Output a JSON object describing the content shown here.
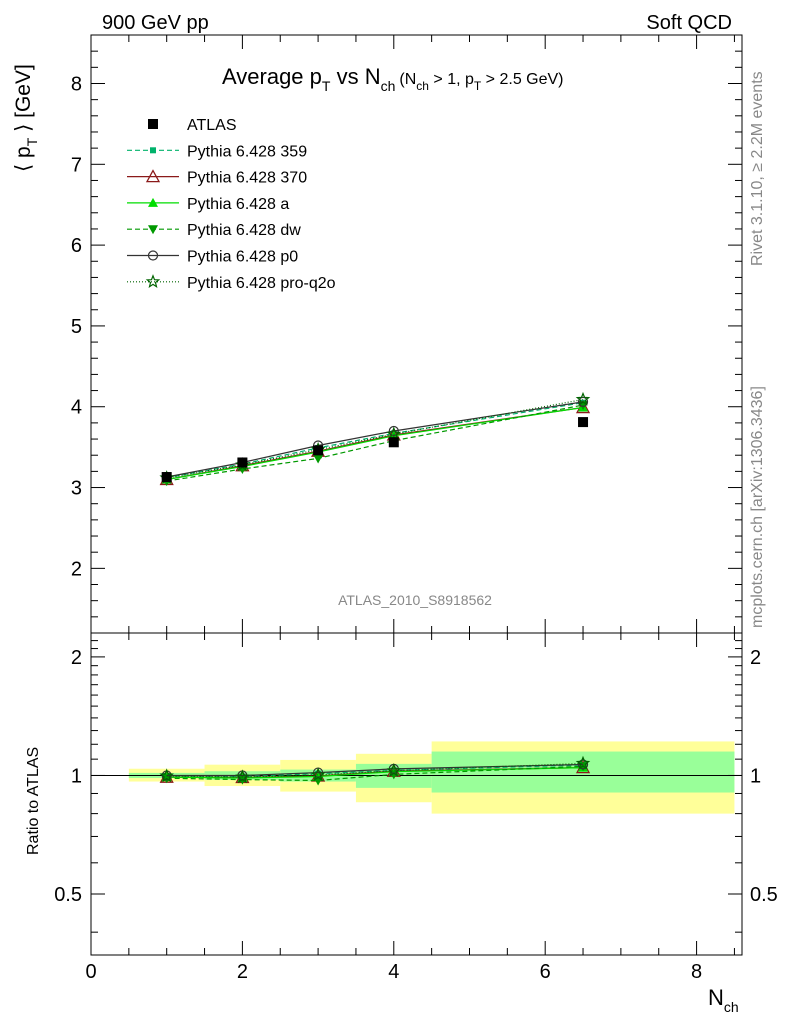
{
  "header": {
    "left": "900 GeV pp",
    "right": "Soft QCD"
  },
  "side": {
    "rivet": "Rivet 3.1.10, ≥ 2.2M events",
    "mcplots": "mcplots.cern.ch [arXiv:1306.3436]"
  },
  "chart_data": {
    "type": "line",
    "title": {
      "main": "Average p",
      "sub1": "T",
      "mid": " vs N",
      "sub2": "ch",
      "cuts": "(N",
      "cuts_sub1": "ch",
      "cuts_mid": " > 1, p",
      "cuts_sub2": "T",
      "cuts_end": " > 2.5 GeV)"
    },
    "ylabel": {
      "main": "⟨ p",
      "sub": "T",
      "end": " ⟩ [GeV]"
    },
    "xlabel": {
      "main": "N",
      "sub": "ch"
    },
    "ratio_ylabel": "Ratio to ATLAS",
    "watermark": "ATLAS_2010_S8918562",
    "xlim": [
      0,
      8.6
    ],
    "ylim": [
      1.2,
      8.6
    ],
    "ratio_ylim": [
      0.35,
      2.3
    ],
    "x_ticks": [
      0,
      2,
      4,
      6,
      8
    ],
    "y_ticks": [
      2,
      3,
      4,
      5,
      6,
      7,
      8
    ],
    "ratio_ticks": [
      0.5,
      1,
      2
    ],
    "x": [
      1,
      2,
      3,
      4,
      6.5
    ],
    "bins": [
      [
        0.5,
        1.5
      ],
      [
        1.5,
        2.5
      ],
      [
        2.5,
        3.5
      ],
      [
        3.5,
        4.5
      ],
      [
        4.5,
        8.5
      ]
    ],
    "data": {
      "name": "ATLAS",
      "values": [
        3.13,
        3.31,
        3.46,
        3.56,
        3.81
      ]
    },
    "ratio_band_stat": [
      [
        0.985,
        1.015
      ],
      [
        0.975,
        1.025
      ],
      [
        0.965,
        1.035
      ],
      [
        0.93,
        1.07
      ],
      [
        0.905,
        1.15
      ]
    ],
    "ratio_band_total": [
      [
        0.965,
        1.04
      ],
      [
        0.94,
        1.065
      ],
      [
        0.91,
        1.095
      ],
      [
        0.855,
        1.135
      ],
      [
        0.8,
        1.22
      ]
    ],
    "series": [
      {
        "name": "Pythia 6.428 359",
        "values": [
          3.12,
          3.29,
          3.49,
          3.67,
          4.05
        ],
        "ratio": [
          0.997,
          0.994,
          1.01,
          1.03,
          1.063
        ],
        "color": "#00b26b",
        "dash": "5,3",
        "marker": "square-small"
      },
      {
        "name": "Pythia 6.428 370",
        "values": [
          3.1,
          3.27,
          3.45,
          3.65,
          3.99
        ],
        "ratio": [
          0.99,
          0.988,
          0.997,
          1.025,
          1.047
        ],
        "color": "#8b1a1a",
        "dash": "",
        "marker": "triangle-open"
      },
      {
        "name": "Pythia 6.428 a",
        "values": [
          3.1,
          3.26,
          3.44,
          3.64,
          3.99
        ],
        "ratio": [
          0.99,
          0.985,
          0.994,
          1.022,
          1.047
        ],
        "color": "#00dd00",
        "dash": "",
        "marker": "triangle"
      },
      {
        "name": "Pythia 6.428 dw",
        "values": [
          3.08,
          3.23,
          3.36,
          3.58,
          4.02
        ],
        "ratio": [
          0.984,
          0.976,
          0.971,
          1.006,
          1.055
        ],
        "color": "#009900",
        "dash": "5,3",
        "marker": "triangle-down"
      },
      {
        "name": "Pythia 6.428 p0",
        "values": [
          3.13,
          3.31,
          3.52,
          3.7,
          4.06
        ],
        "ratio": [
          1.0,
          1.0,
          1.017,
          1.039,
          1.066
        ],
        "color": "#333333",
        "dash": "",
        "marker": "circle-open"
      },
      {
        "name": "Pythia 6.428 pro-q2o",
        "values": [
          3.12,
          3.28,
          3.47,
          3.66,
          4.09
        ],
        "ratio": [
          0.997,
          0.991,
          1.003,
          1.028,
          1.073
        ],
        "color": "#006400",
        "dash": "1,2",
        "marker": "star"
      }
    ]
  }
}
